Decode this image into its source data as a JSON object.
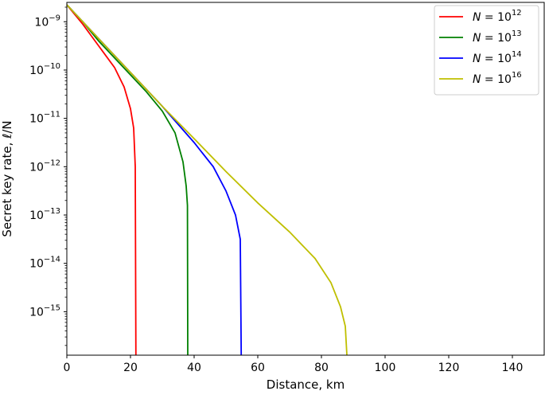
{
  "chart_data": {
    "type": "line",
    "xlabel": "Distance, km",
    "ylabel": "Secret key rate, ℓ/N",
    "xlim": [
      0,
      150
    ],
    "ylim_log10": [
      -15.9,
      -8.6
    ],
    "yscale": "log",
    "grid": false,
    "legend_position": "top-right",
    "x_ticks": [
      0,
      20,
      40,
      60,
      80,
      100,
      120,
      140
    ],
    "y_ticks": [
      {
        "base": "10",
        "exp": "−9",
        "log10": -9
      },
      {
        "base": "10",
        "exp": "−10",
        "log10": -10
      },
      {
        "base": "10",
        "exp": "−11",
        "log10": -11
      },
      {
        "base": "10",
        "exp": "−12",
        "log10": -12
      },
      {
        "base": "10",
        "exp": "−13",
        "log10": -13
      },
      {
        "base": "10",
        "exp": "−14",
        "log10": -14
      },
      {
        "base": "10",
        "exp": "−15",
        "log10": -15
      }
    ],
    "series": [
      {
        "name_prefix": "N = 10",
        "name_exp": "12",
        "color": "#ff0000",
        "points": [
          [
            0,
            -8.65
          ],
          [
            5,
            -9.05
          ],
          [
            10,
            -9.5
          ],
          [
            15,
            -9.95
          ],
          [
            18,
            -10.35
          ],
          [
            20,
            -10.8
          ],
          [
            21,
            -11.2
          ],
          [
            21.5,
            -12.0
          ],
          [
            21.7,
            -15.9
          ]
        ]
      },
      {
        "name_prefix": "N = 10",
        "name_exp": "13",
        "color": "#008000",
        "points": [
          [
            0,
            -8.65
          ],
          [
            5,
            -9.0
          ],
          [
            10,
            -9.4
          ],
          [
            15,
            -9.75
          ],
          [
            20,
            -10.1
          ],
          [
            25,
            -10.45
          ],
          [
            30,
            -10.85
          ],
          [
            34,
            -11.3
          ],
          [
            36.5,
            -11.9
          ],
          [
            37.5,
            -12.4
          ],
          [
            37.9,
            -12.8
          ],
          [
            38.0,
            -15.9
          ]
        ]
      },
      {
        "name_prefix": "N = 10",
        "name_exp": "14",
        "color": "#0000ff",
        "points": [
          [
            0,
            -8.65
          ],
          [
            10,
            -9.35
          ],
          [
            20,
            -10.05
          ],
          [
            30,
            -10.75
          ],
          [
            40,
            -11.5
          ],
          [
            46,
            -12.0
          ],
          [
            50,
            -12.5
          ],
          [
            53,
            -13.0
          ],
          [
            54.5,
            -13.5
          ],
          [
            54.8,
            -15.9
          ]
        ]
      },
      {
        "name_prefix": "N = 10",
        "name_exp": "16",
        "color": "#bfbf00",
        "points": [
          [
            0,
            -8.65
          ],
          [
            10,
            -9.35
          ],
          [
            20,
            -10.05
          ],
          [
            30,
            -10.75
          ],
          [
            40,
            -11.42
          ],
          [
            50,
            -12.1
          ],
          [
            60,
            -12.75
          ],
          [
            70,
            -13.35
          ],
          [
            78,
            -13.9
          ],
          [
            83,
            -14.4
          ],
          [
            86,
            -14.9
          ],
          [
            87.5,
            -15.3
          ],
          [
            88,
            -15.9
          ]
        ]
      }
    ]
  }
}
